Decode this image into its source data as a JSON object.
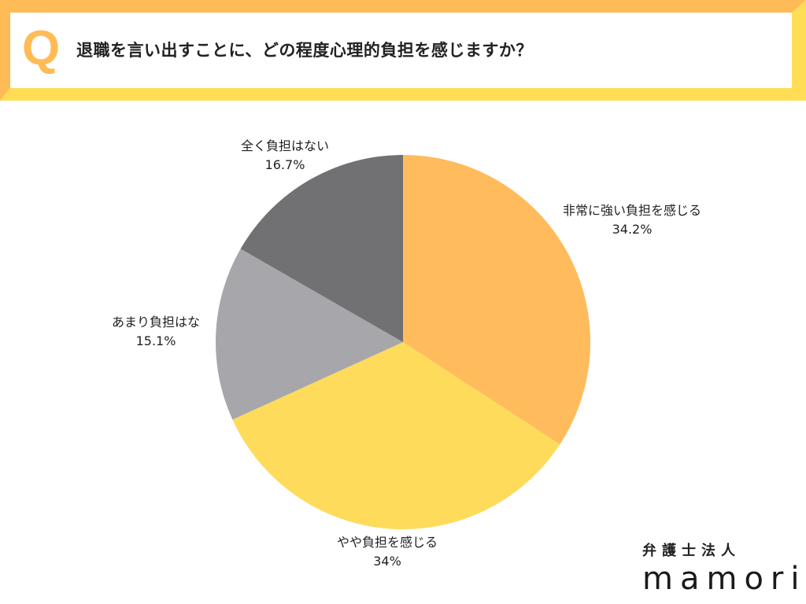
{
  "header": {
    "q_mark": "Q",
    "question": "退職を言い出すことに、どの程度心理的負担を感じますか？"
  },
  "colors": {
    "frame_top_left": "#FFBB55",
    "frame_bottom_right": "#FFDD55",
    "slice_1": "#FFBB5C",
    "slice_2": "#FFDB5C",
    "slice_3": "#A7A6AB",
    "slice_4": "#717073"
  },
  "labels": {
    "s1_name": "非常に強い負担を感じる",
    "s1_value": "34.2%",
    "s2_name": "やや負担を感じる",
    "s2_value": "34%",
    "s3_name": "あまり負担はな",
    "s3_value": "15.1%",
    "s4_name": "全く負担はない",
    "s4_value": "16.7%"
  },
  "brand": {
    "subtitle": "弁護士法人",
    "name": "mamori"
  },
  "chart_data": {
    "type": "pie",
    "title": "退職を言い出すことに、どの程度心理的負担を感じますか？",
    "categories": [
      "非常に強い負担を感じる",
      "やや負担を感じる",
      "あまり負担はな",
      "全く負担はない"
    ],
    "values": [
      34.2,
      34.0,
      15.1,
      16.7
    ],
    "value_labels": [
      "34.2%",
      "34%",
      "15.1%",
      "16.7%"
    ],
    "colors": [
      "#FFBB5C",
      "#FFDB5C",
      "#A7A6AB",
      "#717073"
    ],
    "start_angle": "12 o'clock",
    "direction": "clockwise",
    "legend": "none (labels placed outside slices)"
  }
}
